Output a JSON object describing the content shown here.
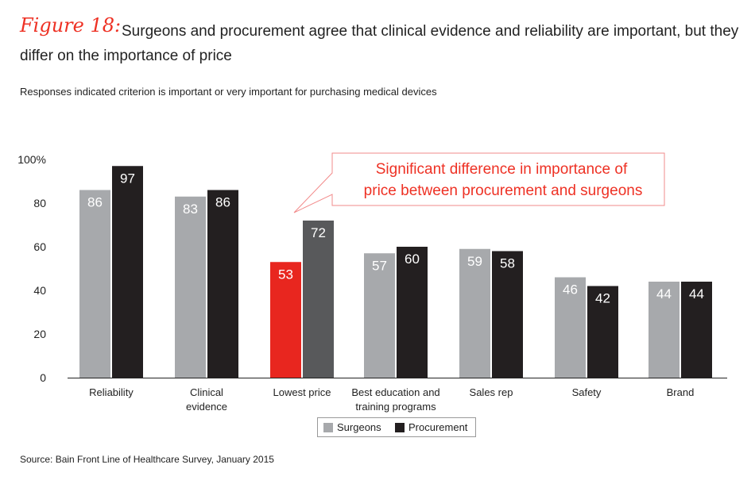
{
  "figure_label": "Figure 18:",
  "title": "Surgeons and procurement agree that clinical evidence and reliability are important, but they differ on the importance of price",
  "subtitle": "Responses indicated criterion is important or very important for purchasing medical devices",
  "source": "Source: Bain Front Line of Healthcare Survey, January 2015",
  "chart_data": {
    "type": "bar",
    "categories": [
      "Reliability",
      "Clinical\nevidence",
      "Lowest price",
      "Best education and\ntraining programs",
      "Sales rep",
      "Safety",
      "Brand"
    ],
    "series": [
      {
        "name": "Surgeons",
        "values": [
          86,
          83,
          53,
          57,
          59,
          46,
          44
        ],
        "color": "#a7a9ac"
      },
      {
        "name": "Procurement",
        "values": [
          97,
          86,
          72,
          60,
          58,
          42,
          44
        ],
        "color": "#231f20"
      }
    ],
    "highlight": {
      "category": "Lowest price",
      "colors": [
        "#e8261f",
        "#58595b"
      ]
    },
    "yticks": [
      "0",
      "20",
      "40",
      "60",
      "80",
      "100%"
    ],
    "ylim": [
      0,
      100
    ],
    "grid": false,
    "legend_placement": "bottom-center",
    "annotation": "Significant difference in importance of price between procurement and surgeons",
    "annotation_color": "#ee3124"
  }
}
